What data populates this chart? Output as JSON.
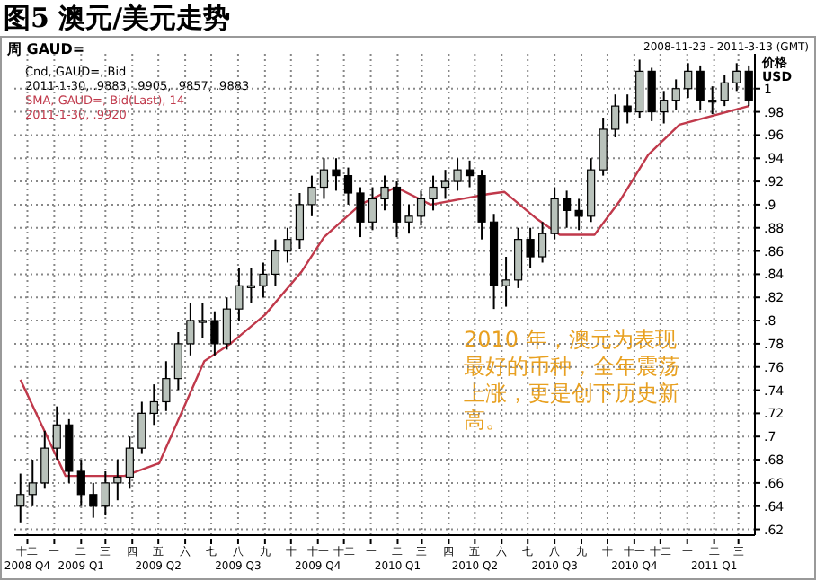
{
  "chart_data": {
    "type": "candlestick",
    "title": "图5 澳元/美元走势",
    "subtitle": "周 GAUD=",
    "ylabel": "价格 USD",
    "annotations": [
      "2008-11-23 - 2011-3-13 (GMT)",
      "Cnd, GAUD=, Bid",
      "2011-1-30, .9883, .9905, .9857, .9883",
      "SMA, GAUD=, Bid(Last), 14",
      "2011-1-30, .9920",
      "2010 年，澳元为表现最好的币种，全年震荡上涨，更是创下历史新高。"
    ],
    "xlim": [
      "2008-11-16",
      "2011-03-20"
    ],
    "xticks": [
      {
        "value": "2008-12-01",
        "label": "十二\n2008 Q4"
      },
      {
        "value": "2009-01-01",
        "label": "一"
      },
      {
        "value": "2009-02-01",
        "label": "二\n2009 Q1"
      },
      {
        "value": "2009-03-01",
        "label": "三"
      },
      {
        "value": "2009-04-01",
        "label": "四"
      },
      {
        "value": "2009-05-01",
        "label": "五\n2009 Q2"
      },
      {
        "value": "2009-06-01",
        "label": "六"
      },
      {
        "value": "2009-07-01",
        "label": "七"
      },
      {
        "value": "2009-08-01",
        "label": "八\n2009 Q3"
      },
      {
        "value": "2009-09-01",
        "label": "九"
      },
      {
        "value": "2009-10-01",
        "label": "十"
      },
      {
        "value": "2009-11-01",
        "label": "十一\n2009 Q4"
      },
      {
        "value": "2009-12-01",
        "label": "十二"
      },
      {
        "value": "2010-01-01",
        "label": "一"
      },
      {
        "value": "2010-02-01",
        "label": "二\n2010 Q1"
      },
      {
        "value": "2010-03-01",
        "label": "三"
      },
      {
        "value": "2010-04-01",
        "label": "四"
      },
      {
        "value": "2010-05-01",
        "label": "五\n2010 Q2"
      },
      {
        "value": "2010-06-01",
        "label": "六"
      },
      {
        "value": "2010-07-01",
        "label": "七"
      },
      {
        "value": "2010-08-01",
        "label": "八\n2010 Q3"
      },
      {
        "value": "2010-09-01",
        "label": "九"
      },
      {
        "value": "2010-10-01",
        "label": "十"
      },
      {
        "value": "2010-11-01",
        "label": "十一\n2010 Q4"
      },
      {
        "value": "2010-12-01",
        "label": "十二"
      },
      {
        "value": "2011-01-01",
        "label": "一"
      },
      {
        "value": "2011-02-01",
        "label": "二\n2011 Q1"
      },
      {
        "value": "2011-03-01",
        "label": "三"
      }
    ],
    "ylim": [
      0.615,
      1.03
    ],
    "yticks": [
      {
        "value": 0.62,
        "label": ".62"
      },
      {
        "value": 0.64,
        "label": ".64"
      },
      {
        "value": 0.66,
        "label": ".66"
      },
      {
        "value": 0.68,
        "label": ".68"
      },
      {
        "value": 0.7,
        "label": ".7"
      },
      {
        "value": 0.72,
        "label": ".72"
      },
      {
        "value": 0.74,
        "label": ".74"
      },
      {
        "value": 0.76,
        "label": ".76"
      },
      {
        "value": 0.78,
        "label": ".78"
      },
      {
        "value": 0.8,
        "label": ".8"
      },
      {
        "value": 0.82,
        "label": ".82"
      },
      {
        "value": 0.84,
        "label": ".84"
      },
      {
        "value": 0.86,
        "label": ".86"
      },
      {
        "value": 0.88,
        "label": ".88"
      },
      {
        "value": 0.9,
        "label": ".9"
      },
      {
        "value": 0.92,
        "label": ".92"
      },
      {
        "value": 0.94,
        "label": ".94"
      },
      {
        "value": 0.96,
        "label": ".96"
      },
      {
        "value": 0.98,
        "label": ".98"
      },
      1
    ],
    "grid": true,
    "series": [
      {
        "type": "candlestick",
        "color": "#000000",
        "x": [
          "2008-11-23",
          "2008-12-07",
          "2008-12-21",
          "2009-01-04",
          "2009-01-18",
          "2009-02-01",
          "2009-02-15",
          "2009-03-01",
          "2009-03-15",
          "2009-03-29",
          "2009-04-12",
          "2009-04-26",
          "2009-05-10",
          "2009-05-24",
          "2009-06-07",
          "2009-06-21",
          "2009-07-05",
          "2009-07-19",
          "2009-08-02",
          "2009-08-16",
          "2009-08-30",
          "2009-09-13",
          "2009-09-27",
          "2009-10-11",
          "2009-10-25",
          "2009-11-08",
          "2009-11-22",
          "2009-12-06",
          "2009-12-20",
          "2010-01-03",
          "2010-01-17",
          "2010-01-31",
          "2010-02-14",
          "2010-02-28",
          "2010-03-14",
          "2010-03-28",
          "2010-04-11",
          "2010-04-25",
          "2010-05-09",
          "2010-05-23",
          "2010-06-06",
          "2010-06-20",
          "2010-07-04",
          "2010-07-18",
          "2010-08-01",
          "2010-08-15",
          "2010-08-29",
          "2010-09-12",
          "2010-09-26",
          "2010-10-10",
          "2010-10-24",
          "2010-11-07",
          "2010-11-21",
          "2010-12-05",
          "2010-12-19",
          "2011-01-02",
          "2011-01-16",
          "2011-01-30",
          "2011-02-13",
          "2011-02-27",
          "2011-03-13"
        ],
        "ohlc": [
          [
            0.64,
            0.668,
            0.626,
            0.65
          ],
          [
            0.65,
            0.68,
            0.64,
            0.66
          ],
          [
            0.66,
            0.705,
            0.655,
            0.69
          ],
          [
            0.69,
            0.726,
            0.68,
            0.71
          ],
          [
            0.71,
            0.715,
            0.66,
            0.67
          ],
          [
            0.67,
            0.68,
            0.64,
            0.65
          ],
          [
            0.65,
            0.66,
            0.63,
            0.64
          ],
          [
            0.64,
            0.67,
            0.632,
            0.66
          ],
          [
            0.66,
            0.68,
            0.645,
            0.665
          ],
          [
            0.665,
            0.7,
            0.655,
            0.69
          ],
          [
            0.69,
            0.73,
            0.685,
            0.72
          ],
          [
            0.72,
            0.745,
            0.71,
            0.73
          ],
          [
            0.73,
            0.765,
            0.722,
            0.75
          ],
          [
            0.75,
            0.79,
            0.74,
            0.78
          ],
          [
            0.78,
            0.815,
            0.77,
            0.8
          ],
          [
            0.8,
            0.815,
            0.785,
            0.8
          ],
          [
            0.8,
            0.808,
            0.77,
            0.78
          ],
          [
            0.78,
            0.82,
            0.775,
            0.81
          ],
          [
            0.81,
            0.845,
            0.8,
            0.83
          ],
          [
            0.83,
            0.845,
            0.815,
            0.83
          ],
          [
            0.83,
            0.85,
            0.82,
            0.84
          ],
          [
            0.84,
            0.87,
            0.83,
            0.86
          ],
          [
            0.86,
            0.88,
            0.85,
            0.87
          ],
          [
            0.87,
            0.91,
            0.862,
            0.9
          ],
          [
            0.9,
            0.925,
            0.89,
            0.915
          ],
          [
            0.915,
            0.94,
            0.905,
            0.93
          ],
          [
            0.93,
            0.94,
            0.912,
            0.925
          ],
          [
            0.925,
            0.932,
            0.9,
            0.91
          ],
          [
            0.91,
            0.915,
            0.872,
            0.885
          ],
          [
            0.885,
            0.915,
            0.878,
            0.905
          ],
          [
            0.905,
            0.925,
            0.895,
            0.915
          ],
          [
            0.915,
            0.92,
            0.872,
            0.885
          ],
          [
            0.885,
            0.9,
            0.875,
            0.89
          ],
          [
            0.89,
            0.912,
            0.882,
            0.905
          ],
          [
            0.905,
            0.925,
            0.895,
            0.915
          ],
          [
            0.915,
            0.93,
            0.905,
            0.92
          ],
          [
            0.92,
            0.94,
            0.912,
            0.93
          ],
          [
            0.93,
            0.938,
            0.915,
            0.925
          ],
          [
            0.925,
            0.93,
            0.87,
            0.885
          ],
          [
            0.885,
            0.892,
            0.81,
            0.83
          ],
          [
            0.83,
            0.855,
            0.812,
            0.835
          ],
          [
            0.835,
            0.88,
            0.828,
            0.87
          ],
          [
            0.87,
            0.88,
            0.845,
            0.855
          ],
          [
            0.855,
            0.885,
            0.85,
            0.875
          ],
          [
            0.875,
            0.915,
            0.87,
            0.905
          ],
          [
            0.905,
            0.912,
            0.88,
            0.895
          ],
          [
            0.895,
            0.905,
            0.878,
            0.89
          ],
          [
            0.89,
            0.94,
            0.885,
            0.93
          ],
          [
            0.93,
            0.975,
            0.925,
            0.965
          ],
          [
            0.965,
            0.995,
            0.958,
            0.985
          ],
          [
            0.985,
            0.995,
            0.97,
            0.98
          ],
          [
            0.98,
            1.025,
            0.975,
            1.015
          ],
          [
            1.015,
            1.018,
            0.972,
            0.98
          ],
          [
            0.98,
            0.998,
            0.97,
            0.99
          ],
          [
            0.99,
            1.008,
            0.982,
            1.0
          ],
          [
            1.0,
            1.022,
            0.992,
            1.015
          ],
          [
            1.015,
            1.02,
            0.982,
            0.99
          ],
          [
            0.99,
            1.002,
            0.978,
            0.99
          ],
          [
            0.99,
            1.012,
            0.985,
            1.005
          ],
          [
            1.005,
            1.022,
            0.998,
            1.015
          ],
          [
            1.015,
            1.02,
            0.985,
            0.99
          ]
        ]
      },
      {
        "type": "line",
        "color": "#c0394b",
        "x": [
          "2008-11-23",
          "2009-01-14",
          "2009-03-23",
          "2009-05-02",
          "2009-06-23",
          "2009-07-23",
          "2009-09-01",
          "2009-10-13",
          "2009-11-08",
          "2009-12-20",
          "2010-01-30",
          "2010-03-11",
          "2010-05-16",
          "2010-06-04",
          "2010-07-11",
          "2010-08-07",
          "2010-09-16",
          "2010-10-15",
          "2010-11-17",
          "2010-12-23",
          "2011-03-13"
        ],
        "values": [
          0.749,
          0.666,
          0.666,
          0.677,
          0.765,
          0.78,
          0.805,
          0.842,
          0.872,
          0.9,
          0.915,
          0.9,
          0.909,
          0.911,
          0.888,
          0.874,
          0.874,
          0.903,
          0.943,
          0.969,
          0.985
        ]
      }
    ]
  }
}
